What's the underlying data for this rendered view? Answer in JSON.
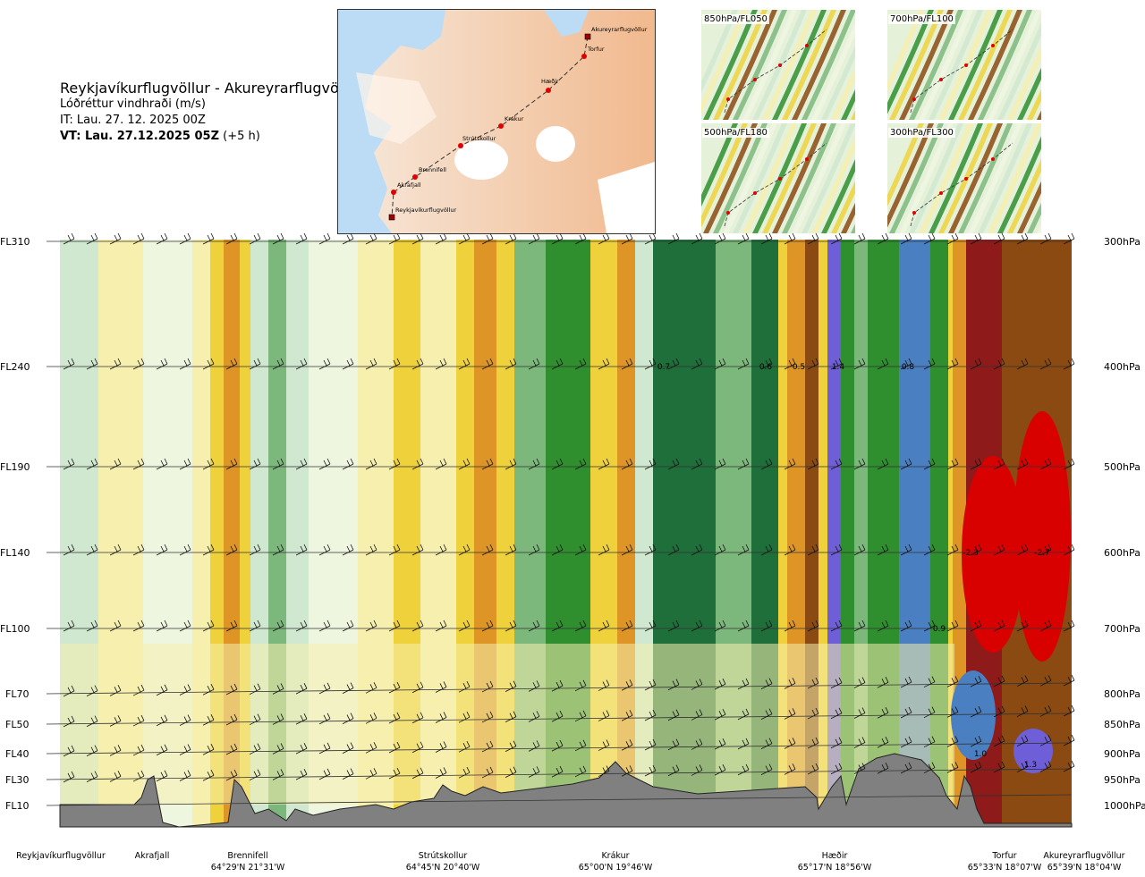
{
  "title": {
    "route": "Reykjavíkurflugvöllur - Akureyrarflugvöllur",
    "variable": "Lóðréttur vindhraði (m/s)",
    "issue_time": "IT: Lau. 27. 12. 2025 00Z",
    "valid_label": "VT: Lau. 27.12.2025 05Z",
    "valid_offset": "(+5 h)"
  },
  "map": {
    "waypoints": [
      {
        "name": "Akureyrarflugvöllur",
        "marker": "square"
      },
      {
        "name": "Torfur",
        "marker": "dot"
      },
      {
        "name": "Hæðir",
        "marker": "dot"
      },
      {
        "name": "Krákur",
        "marker": "dot"
      },
      {
        "name": "Strútskollur",
        "marker": "dot"
      },
      {
        "name": "Brennifell",
        "marker": "dot"
      },
      {
        "name": "Akrafjall",
        "marker": "dot"
      },
      {
        "name": "Reykjavíkurflugvöllur",
        "marker": "square"
      }
    ]
  },
  "thumbnails": [
    {
      "label": "850hPa/FL050"
    },
    {
      "label": "700hPa/FL100"
    },
    {
      "label": "500hPa/FL180"
    },
    {
      "label": "300hPa/FL300"
    }
  ],
  "chart_data": {
    "type": "heatmap",
    "title": "Lóðréttur vindhraði (m/s)",
    "left_axis_labels": [
      "FL310",
      "FL240",
      "FL190",
      "FL140",
      "FL100",
      "FL70",
      "FL50",
      "FL40",
      "FL30",
      "FL10"
    ],
    "right_axis_labels": [
      "300hPa",
      "400hPa",
      "500hPa",
      "600hPa",
      "700hPa",
      "800hPa",
      "850hPa",
      "900hPa",
      "950hPa",
      "1000hPa"
    ],
    "pressure_levels_hpa": [
      300,
      400,
      500,
      600,
      700,
      800,
      850,
      900,
      950,
      1000
    ],
    "stations": [
      {
        "name": "Reykjavíkurflugvöllur",
        "coord": ""
      },
      {
        "name": "Akrafjall",
        "coord": ""
      },
      {
        "name": "Brennifell",
        "coord": "64°29'N 21°31'W"
      },
      {
        "name": "Strútskollur",
        "coord": "64°45'N 20°40'W"
      },
      {
        "name": "Krákur",
        "coord": "65°00'N 19°46'W"
      },
      {
        "name": "Hæðir",
        "coord": "65°17'N 18°56'W"
      },
      {
        "name": "Torfur",
        "coord": "65°33'N 18°07'W"
      },
      {
        "name": "Akureyrarflugvöllur",
        "coord": "65°39'N 18°04'W"
      }
    ],
    "value_labels": [
      {
        "text": "0.7",
        "level_hpa": 400
      },
      {
        "text": "0.6",
        "level_hpa": 400
      },
      {
        "text": "0.5",
        "level_hpa": 400
      },
      {
        "text": "1.4",
        "level_hpa": 400
      },
      {
        "text": "0.8",
        "level_hpa": 400
      },
      {
        "text": "-2.3",
        "level_hpa": 600
      },
      {
        "text": "-2.7",
        "level_hpa": 600
      },
      {
        "text": "0.9",
        "level_hpa": 700
      },
      {
        "text": "1.0",
        "level_hpa": 900
      },
      {
        "text": "1.3",
        "level_hpa": 925
      }
    ],
    "palette": {
      "strong_up_blue": "#6e5fd8",
      "up_blue": "#4a7fc1",
      "dark_green": "#1f6f3a",
      "green": "#2f8f2f",
      "mid_green": "#7cb87c",
      "light_green": "#cfe8cf",
      "pale": "#eef6e0",
      "pale_yellow": "#f6efae",
      "yellow": "#efd23b",
      "orange": "#de9526",
      "brown": "#8a4a12",
      "dark_red": "#8e1a1a",
      "red": "#d90000",
      "terrain": "#808080"
    }
  }
}
